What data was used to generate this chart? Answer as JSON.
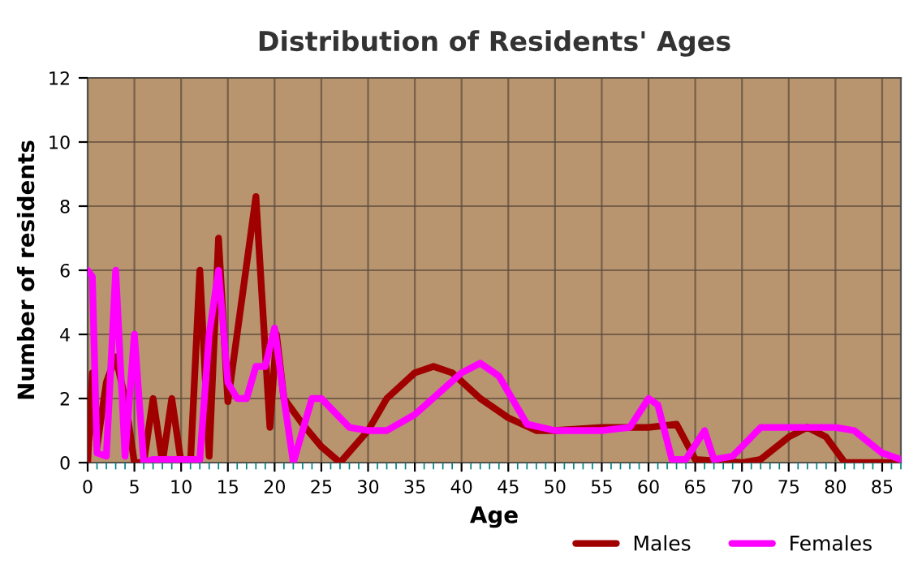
{
  "chart_data": {
    "type": "line",
    "title": "Distribution of Residents' Ages",
    "xlabel": "Age",
    "ylabel": "Number of residents",
    "xlim": [
      0,
      87
    ],
    "xticks": [
      0,
      5,
      10,
      15,
      20,
      25,
      30,
      35,
      40,
      45,
      50,
      55,
      60,
      65,
      70,
      75,
      80,
      85
    ],
    "ylim": [
      0,
      12
    ],
    "yticks": [
      0,
      2,
      4,
      6,
      8,
      10,
      12
    ],
    "grid": true,
    "legend": "bottom right",
    "series": [
      {
        "name": "Males",
        "color": "#a00000",
        "x": [
          0,
          0.5,
          1,
          2,
          3,
          4,
          5,
          6,
          7,
          8,
          9,
          10,
          11,
          12,
          13,
          14,
          15,
          18,
          19.5,
          20.2,
          21,
          23,
          25,
          27,
          30,
          32,
          35,
          37,
          39,
          42,
          45,
          48,
          50,
          55,
          60,
          63,
          65,
          70,
          72,
          75,
          77,
          79,
          81,
          87
        ],
        "values": [
          0,
          2.8,
          0.5,
          2.5,
          3.3,
          2,
          0,
          0,
          2,
          0,
          2,
          0,
          0,
          6,
          0.2,
          7,
          1.9,
          8.3,
          1.1,
          4,
          2,
          1.2,
          0.5,
          0,
          1,
          2,
          2.8,
          3,
          2.8,
          2,
          1.4,
          1,
          1,
          1.1,
          1.1,
          1.2,
          0.1,
          0,
          0.1,
          0.8,
          1.1,
          0.8,
          0,
          0
        ]
      },
      {
        "name": "Females",
        "color": "#ff00ff",
        "x": [
          0,
          0.5,
          1,
          2,
          3,
          4,
          5,
          6,
          7,
          10,
          12,
          13,
          14,
          15,
          16,
          17,
          18,
          19,
          20,
          21,
          22,
          24,
          25,
          28,
          30,
          32,
          35,
          40,
          42,
          44,
          47,
          50,
          55,
          58,
          60,
          61,
          62.5,
          64,
          66,
          67,
          69,
          72,
          75,
          80,
          82,
          85,
          87
        ],
        "values": [
          6,
          5.8,
          0.3,
          0.2,
          6,
          0.2,
          4,
          0,
          0.1,
          0.1,
          0.1,
          4,
          6,
          2.5,
          2,
          2,
          3,
          3,
          4.2,
          2,
          0,
          2,
          2,
          1.1,
          1,
          1,
          1.5,
          2.8,
          3.1,
          2.7,
          1.2,
          1,
          1,
          1.1,
          2,
          1.8,
          0.1,
          0.1,
          1,
          0.1,
          0.2,
          1.1,
          1.1,
          1.1,
          1,
          0.3,
          0.1
        ]
      }
    ]
  }
}
